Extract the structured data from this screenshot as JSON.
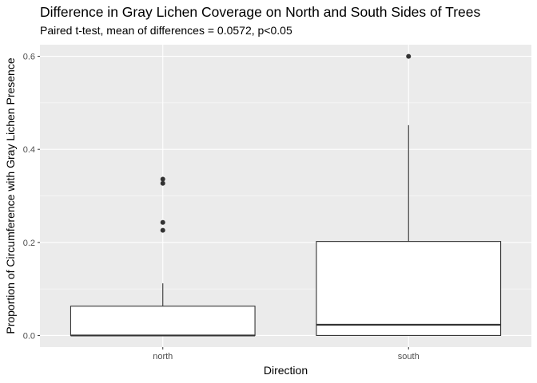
{
  "chart_data": {
    "type": "boxplot",
    "title": "Difference in Gray Lichen Coverage on North and South Sides of Trees",
    "subtitle": "Paired t-test, mean of differences = 0.0572, p<0.05",
    "xlabel": "Direction",
    "ylabel": "Proportion of Circumference with Gray Lichen Presence",
    "categories": [
      "north",
      "south"
    ],
    "ylim": [
      -0.025,
      0.625
    ],
    "yticks": [
      0.0,
      0.2,
      0.4,
      0.6
    ],
    "ytick_labels": [
      "0.0",
      "0.2",
      "0.4",
      "0.6"
    ],
    "grid": true,
    "boxes": [
      {
        "category": "north",
        "whisker_low": 0.0,
        "q1": 0.0,
        "median": 0.0,
        "q3": 0.063,
        "whisker_high": 0.112,
        "outliers": [
          0.336,
          0.327,
          0.243,
          0.226
        ]
      },
      {
        "category": "south",
        "whisker_low": 0.0,
        "q1": 0.0,
        "median": 0.023,
        "q3": 0.202,
        "whisker_high": 0.452,
        "outliers": [
          0.6
        ]
      }
    ],
    "colors": {
      "panel": "#ebebeb",
      "grid": "#ffffff",
      "box_fill": "#ffffff",
      "box_line": "#333333"
    }
  }
}
